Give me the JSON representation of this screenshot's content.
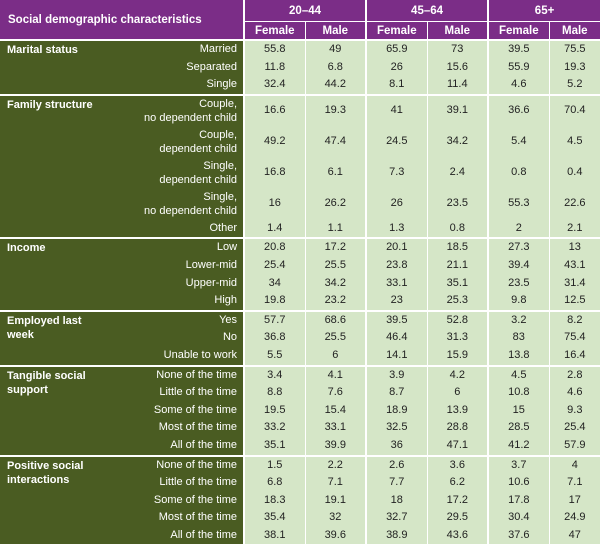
{
  "header": {
    "title": "Social demographic characteristics",
    "age_groups": [
      "20–44",
      "45–64",
      "65+"
    ],
    "sexes": [
      "Female",
      "Male"
    ]
  },
  "sections": [
    {
      "name": "Marital status",
      "rows": [
        {
          "label": [
            "Married"
          ],
          "values": [
            "55.8",
            "49",
            "65.9",
            "73",
            "39.5",
            "75.5"
          ]
        },
        {
          "label": [
            "Separated"
          ],
          "values": [
            "11.8",
            "6.8",
            "26",
            "15.6",
            "55.9",
            "19.3"
          ]
        },
        {
          "label": [
            "Single"
          ],
          "values": [
            "32.4",
            "44.2",
            "8.1",
            "11.4",
            "4.6",
            "5.2"
          ]
        }
      ]
    },
    {
      "name": "Family structure",
      "rows": [
        {
          "label": [
            "Couple,",
            "no dependent child"
          ],
          "values": [
            "16.6",
            "19.3",
            "41",
            "39.1",
            "36.6",
            "70.4"
          ]
        },
        {
          "label": [
            "Couple,",
            "dependent child"
          ],
          "values": [
            "49.2",
            "47.4",
            "24.5",
            "34.2",
            "5.4",
            "4.5"
          ]
        },
        {
          "label": [
            "Single,",
            "dependent child"
          ],
          "values": [
            "16.8",
            "6.1",
            "7.3",
            "2.4",
            "0.8",
            "0.4"
          ]
        },
        {
          "label": [
            "Single,",
            "no dependent child"
          ],
          "values": [
            "16",
            "26.2",
            "26",
            "23.5",
            "55.3",
            "22.6"
          ]
        },
        {
          "label": [
            "Other"
          ],
          "values": [
            "1.4",
            "1.1",
            "1.3",
            "0.8",
            "2",
            "2.1"
          ]
        }
      ]
    },
    {
      "name": "Income",
      "rows": [
        {
          "label": [
            "Low"
          ],
          "values": [
            "20.8",
            "17.2",
            "20.1",
            "18.5",
            "27.3",
            "13"
          ]
        },
        {
          "label": [
            "Lower-mid"
          ],
          "values": [
            "25.4",
            "25.5",
            "23.8",
            "21.1",
            "39.4",
            "43.1"
          ]
        },
        {
          "label": [
            "Upper-mid"
          ],
          "values": [
            "34",
            "34.2",
            "33.1",
            "35.1",
            "23.5",
            "31.4"
          ]
        },
        {
          "label": [
            "High"
          ],
          "values": [
            "19.8",
            "23.2",
            "23",
            "25.3",
            "9.8",
            "12.5"
          ]
        }
      ]
    },
    {
      "name": "Employed last week",
      "rows": [
        {
          "label": [
            "Yes"
          ],
          "values": [
            "57.7",
            "68.6",
            "39.5",
            "52.8",
            "3.2",
            "8.2"
          ]
        },
        {
          "label": [
            "No"
          ],
          "values": [
            "36.8",
            "25.5",
            "46.4",
            "31.3",
            "83",
            "75.4"
          ]
        },
        {
          "label": [
            "Unable to work"
          ],
          "values": [
            "5.5",
            "6",
            "14.1",
            "15.9",
            "13.8",
            "16.4"
          ]
        }
      ]
    },
    {
      "name": "Tangible social support",
      "rows": [
        {
          "label": [
            "None of the time"
          ],
          "values": [
            "3.4",
            "4.1",
            "3.9",
            "4.2",
            "4.5",
            "2.8"
          ]
        },
        {
          "label": [
            "Little of the time"
          ],
          "values": [
            "8.8",
            "7.6",
            "8.7",
            "6",
            "10.8",
            "4.6"
          ]
        },
        {
          "label": [
            "Some of the time"
          ],
          "values": [
            "19.5",
            "15.4",
            "18.9",
            "13.9",
            "15",
            "9.3"
          ]
        },
        {
          "label": [
            "Most of the time"
          ],
          "values": [
            "33.2",
            "33.1",
            "32.5",
            "28.8",
            "28.5",
            "25.4"
          ]
        },
        {
          "label": [
            "All of the time"
          ],
          "values": [
            "35.1",
            "39.9",
            "36",
            "47.1",
            "41.2",
            "57.9"
          ]
        }
      ]
    },
    {
      "name": "Positive social interactions",
      "rows": [
        {
          "label": [
            "None of the time"
          ],
          "values": [
            "1.5",
            "2.2",
            "2.6",
            "3.6",
            "3.7",
            "4"
          ]
        },
        {
          "label": [
            "Little of the time"
          ],
          "values": [
            "6.8",
            "7.1",
            "7.7",
            "6.2",
            "10.6",
            "7.1"
          ]
        },
        {
          "label": [
            "Some of the time"
          ],
          "values": [
            "18.3",
            "19.1",
            "18",
            "17.2",
            "17.8",
            "17"
          ]
        },
        {
          "label": [
            "Most of the time"
          ],
          "values": [
            "35.4",
            "32",
            "32.7",
            "29.5",
            "30.4",
            "24.9"
          ]
        },
        {
          "label": [
            "All of the time"
          ],
          "values": [
            "38.1",
            "39.6",
            "38.9",
            "43.6",
            "37.6",
            "47"
          ]
        }
      ]
    }
  ]
}
